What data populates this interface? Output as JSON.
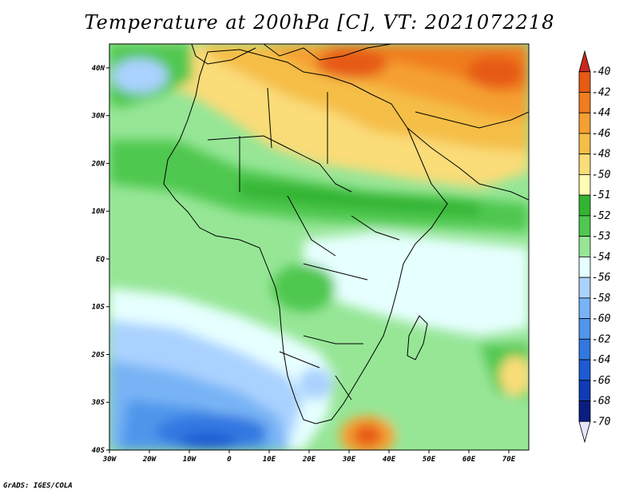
{
  "title": "Temperature at 200hPa [C], VT: 2021072218",
  "credit": "GrADS: IGES/COLA",
  "map": {
    "lon_range": [
      -30,
      75
    ],
    "lat_range": [
      -40,
      45
    ],
    "lon_ticks": [
      "30W",
      "20W",
      "10W",
      "0",
      "10E",
      "20E",
      "30E",
      "40E",
      "50E",
      "60E",
      "70E"
    ],
    "lat_ticks": [
      "40N",
      "30N",
      "20N",
      "10N",
      "EQ",
      "10S",
      "20S",
      "30S",
      "40S"
    ]
  },
  "colorbar": {
    "labels": [
      "-40",
      "-42",
      "-44",
      "-46",
      "-48",
      "-50",
      "-51",
      "-52",
      "-53",
      "-54",
      "-56",
      "-58",
      "-60",
      "-62",
      "-64",
      "-66",
      "-68",
      "-70"
    ],
    "colors": [
      "#c8281e",
      "#e65a14",
      "#f07d1e",
      "#f5a032",
      "#f5be46",
      "#fadc78",
      "#fffab4",
      "#32b432",
      "#50c850",
      "#96e696",
      "#e6ffff",
      "#aad2ff",
      "#78b4f5",
      "#5096eb",
      "#3278e1",
      "#1e5ad2",
      "#0f3cb4",
      "#0a1e82",
      "#e6e6ff"
    ]
  },
  "colors": {
    "ocean_base": "#96e696",
    "land_base": "#96e696"
  }
}
